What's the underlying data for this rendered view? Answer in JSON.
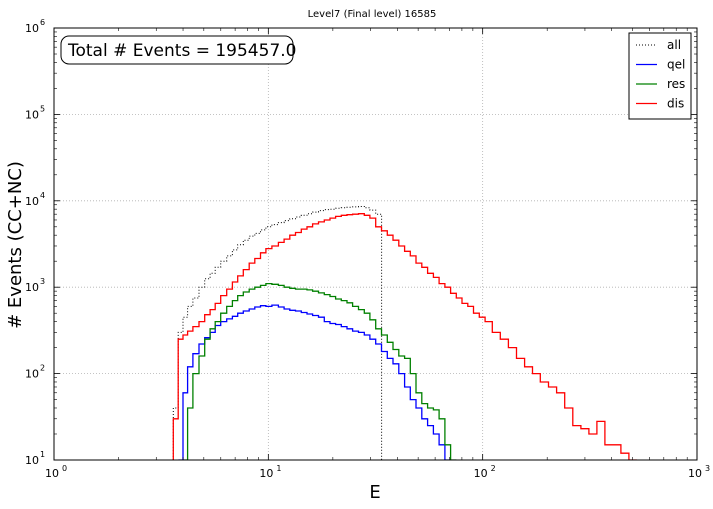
{
  "chart_data": {
    "type": "line",
    "title": "Level7 (Final level) 16585",
    "xlabel": "E",
    "ylabel": "# Events (CC+NC)",
    "x_scale": "log",
    "y_scale": "log",
    "xlim": [
      1,
      1000
    ],
    "ylim": [
      10,
      1000000
    ],
    "grid": true,
    "legend_position": "top-right",
    "annotation": "Total # Events = 195457.0",
    "x_ticks": [
      {
        "value": 1,
        "base": "10",
        "exp": "0"
      },
      {
        "value": 10,
        "base": "10",
        "exp": "1"
      },
      {
        "value": 100,
        "base": "10",
        "exp": "2"
      },
      {
        "value": 1000,
        "base": "10",
        "exp": "3"
      }
    ],
    "y_ticks": [
      {
        "value": 10,
        "base": "10",
        "exp": "1"
      },
      {
        "value": 100,
        "base": "10",
        "exp": "2"
      },
      {
        "value": 1000,
        "base": "10",
        "exp": "3"
      },
      {
        "value": 10000,
        "base": "10",
        "exp": "4"
      },
      {
        "value": 100000,
        "base": "10",
        "exp": "5"
      },
      {
        "value": 1000000,
        "base": "10",
        "exp": "6"
      }
    ],
    "series": [
      {
        "name": "all",
        "color": "#000000",
        "style": "dotted",
        "x": [
          3.7,
          3.9,
          4.1,
          4.3,
          4.6,
          4.9,
          5.2,
          5.5,
          5.8,
          6.2,
          6.6,
          7.0,
          7.4,
          7.9,
          8.4,
          8.9,
          9.5,
          10.0,
          10.8,
          11.5,
          12.2,
          13.0,
          13.8,
          14.7,
          15.6,
          16.6,
          17.7,
          18.8,
          20.0,
          21.2,
          22.6,
          24.0,
          25.5,
          27.2,
          28.9,
          30.7,
          32.7
        ],
        "y": [
          40,
          300,
          450,
          600,
          750,
          1000,
          1250,
          1450,
          1700,
          2000,
          2300,
          2700,
          3100,
          3500,
          3900,
          4200,
          4600,
          5000,
          5300,
          5600,
          5900,
          6200,
          6500,
          6800,
          7100,
          7400,
          7700,
          7900,
          8000,
          8200,
          8300,
          8400,
          8500,
          8600,
          8300,
          7800,
          7000
        ]
      },
      {
        "name": "qel",
        "color": "#0000ff",
        "style": "solid",
        "x": [
          3.9,
          4.1,
          4.3,
          4.6,
          4.9,
          5.2,
          5.5,
          5.8,
          6.2,
          6.6,
          7.0,
          7.4,
          7.9,
          8.4,
          8.9,
          9.5,
          10.0,
          10.8,
          11.5,
          12.2,
          13.0,
          13.8,
          14.7,
          15.6,
          16.6,
          17.7,
          18.8,
          20.0,
          21.2,
          22.6,
          24.0,
          25.5,
          27.2,
          28.9,
          30.7,
          32.7,
          34.8,
          37.0,
          39.4,
          41.9,
          44.6,
          47.4,
          50.4,
          53.7,
          57.1,
          60.7,
          64.6,
          68.7
        ],
        "y": [
          10,
          60,
          120,
          170,
          220,
          260,
          300,
          360,
          400,
          430,
          460,
          500,
          530,
          560,
          590,
          610,
          600,
          620,
          590,
          560,
          540,
          530,
          510,
          490,
          470,
          450,
          400,
          380,
          370,
          350,
          330,
          310,
          300,
          280,
          250,
          220,
          180,
          150,
          130,
          100,
          70,
          50,
          40,
          30,
          25,
          20,
          15,
          10
        ]
      },
      {
        "name": "res",
        "color": "#008000",
        "style": "solid",
        "x": [
          4.1,
          4.3,
          4.6,
          4.9,
          5.2,
          5.5,
          5.8,
          6.2,
          6.6,
          7.0,
          7.4,
          7.9,
          8.4,
          8.9,
          9.5,
          10.0,
          10.8,
          11.5,
          12.2,
          13.0,
          13.8,
          14.7,
          15.6,
          16.6,
          17.7,
          18.8,
          20.0,
          21.2,
          22.6,
          24.0,
          25.5,
          27.2,
          28.9,
          30.7,
          32.7,
          34.8,
          37.0,
          39.4,
          41.9,
          44.6,
          47.4,
          50.4,
          53.7,
          57.1,
          60.7,
          64.6,
          68.7,
          73.1
        ],
        "y": [
          10,
          40,
          100,
          160,
          250,
          330,
          400,
          500,
          600,
          700,
          800,
          880,
          950,
          1000,
          1050,
          1100,
          1080,
          1050,
          1000,
          970,
          950,
          950,
          930,
          900,
          860,
          820,
          780,
          730,
          700,
          660,
          600,
          550,
          500,
          420,
          330,
          280,
          230,
          190,
          160,
          150,
          100,
          60,
          45,
          40,
          38,
          30,
          15,
          10
        ]
      },
      {
        "name": "dis",
        "color": "#ff0000",
        "style": "solid",
        "x": [
          3.7,
          3.9,
          4.1,
          4.3,
          4.6,
          4.9,
          5.2,
          5.5,
          5.8,
          6.2,
          6.6,
          7.0,
          7.4,
          7.9,
          8.4,
          8.9,
          9.5,
          10.0,
          10.8,
          11.5,
          12.2,
          13.0,
          13.8,
          14.7,
          15.6,
          16.6,
          17.7,
          18.8,
          20.0,
          21.2,
          22.6,
          24.0,
          25.5,
          27.2,
          28.9,
          30.7,
          32.7,
          34.8,
          37.0,
          39.4,
          41.9,
          44.6,
          47.4,
          50.4,
          53.7,
          57.1,
          60.7,
          64.6,
          68.7,
          73.1,
          77.7,
          82.6,
          87.9,
          93.5,
          99.4,
          106,
          116,
          126,
          138,
          150,
          164,
          178,
          194,
          212,
          231,
          252,
          275,
          300,
          327,
          356,
          388,
          423,
          461,
          502
        ],
        "y": [
          30,
          250,
          280,
          310,
          350,
          400,
          480,
          550,
          650,
          800,
          950,
          1150,
          1350,
          1600,
          1900,
          2150,
          2500,
          2800,
          3000,
          3300,
          3600,
          4000,
          4300,
          4700,
          5000,
          5400,
          5700,
          6000,
          6300,
          6600,
          6800,
          6900,
          7000,
          7100,
          6800,
          6300,
          5000,
          4500,
          4000,
          3500,
          3000,
          2600,
          2300,
          1900,
          1700,
          1450,
          1300,
          1100,
          1000,
          850,
          750,
          650,
          600,
          500,
          450,
          400,
          300,
          250,
          200,
          150,
          120,
          100,
          80,
          70,
          60,
          40,
          25,
          23,
          20,
          28,
          15,
          15,
          12,
          10
        ]
      }
    ]
  }
}
